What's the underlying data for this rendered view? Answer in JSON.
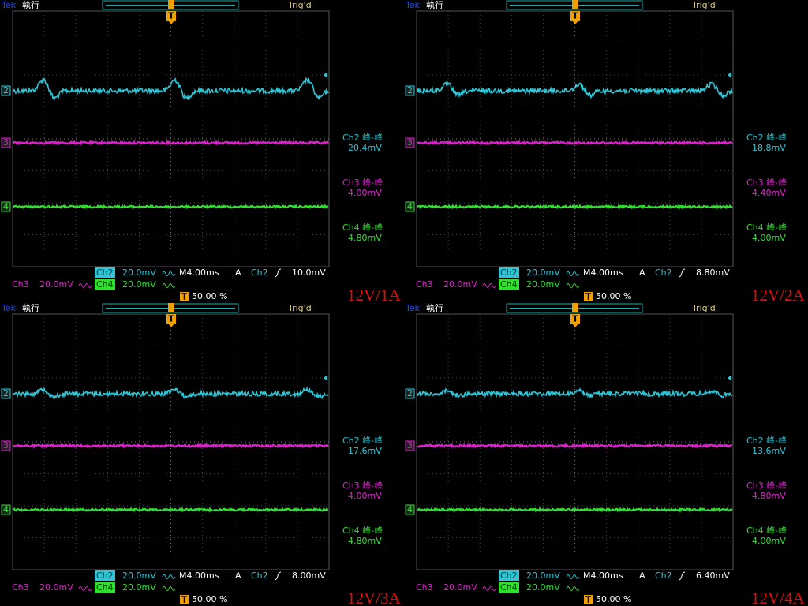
{
  "panels": [
    {
      "brand": "Tek",
      "status": "執行",
      "trigger_state": "Trig'd",
      "trigger_marker": "T",
      "channel_markers": [
        "2",
        "3",
        "4"
      ],
      "measurements": [
        {
          "label": "Ch2 峰-峰",
          "value": "20.4mV"
        },
        {
          "label": "Ch3 峰-峰",
          "value": "4.00mV"
        },
        {
          "label": "Ch4 峰-峰",
          "value": "4.80mV"
        }
      ],
      "ch2": "Ch2",
      "ch2_scale": "20.0mV",
      "timebase": "M4.00ms",
      "trigger_mode": "A",
      "trigger_source": "Ch2",
      "trigger_level": "10.0mV",
      "ch3": "Ch3",
      "ch3_scale": "20.0mV",
      "ch4": "Ch4",
      "ch4_scale": "20.0mV",
      "trigger_position": "50.00 %",
      "caption": "12V/1A"
    },
    {
      "brand": "Tek",
      "status": "執行",
      "trigger_state": "Trig'd",
      "trigger_marker": "T",
      "channel_markers": [
        "2",
        "3",
        "4"
      ],
      "measurements": [
        {
          "label": "Ch2 峰-峰",
          "value": "18.8mV"
        },
        {
          "label": "Ch3 峰-峰",
          "value": "4.40mV"
        },
        {
          "label": "Ch4 峰-峰",
          "value": "4.00mV"
        }
      ],
      "ch2": "Ch2",
      "ch2_scale": "20.0mV",
      "timebase": "M4.00ms",
      "trigger_mode": "A",
      "trigger_source": "Ch2",
      "trigger_level": "8.80mV",
      "ch3": "Ch3",
      "ch3_scale": "20.0mV",
      "ch4": "Ch4",
      "ch4_scale": "20.0mV",
      "trigger_position": "50.00 %",
      "caption": "12V/2A"
    },
    {
      "brand": "Tek",
      "status": "執行",
      "trigger_state": "Trig'd",
      "trigger_marker": "T",
      "channel_markers": [
        "2",
        "3",
        "4"
      ],
      "measurements": [
        {
          "label": "Ch2 峰-峰",
          "value": "17.6mV"
        },
        {
          "label": "Ch3 峰-峰",
          "value": "4.00mV"
        },
        {
          "label": "Ch4 峰-峰",
          "value": "4.80mV"
        }
      ],
      "ch2": "Ch2",
      "ch2_scale": "20.0mV",
      "timebase": "M4.00ms",
      "trigger_mode": "A",
      "trigger_source": "Ch2",
      "trigger_level": "8.00mV",
      "ch3": "Ch3",
      "ch3_scale": "20.0mV",
      "ch4": "Ch4",
      "ch4_scale": "20.0mV",
      "trigger_position": "50.00 %",
      "caption": "12V/3A"
    },
    {
      "brand": "Tek",
      "status": "執行",
      "trigger_state": "Trig'd",
      "trigger_marker": "T",
      "channel_markers": [
        "2",
        "3",
        "4"
      ],
      "measurements": [
        {
          "label": "Ch2 峰-峰",
          "value": "13.6mV"
        },
        {
          "label": "Ch3 峰-峰",
          "value": "4.80mV"
        },
        {
          "label": "Ch4 峰-峰",
          "value": "4.00mV"
        }
      ],
      "ch2": "Ch2",
      "ch2_scale": "20.0mV",
      "timebase": "M4.00ms",
      "trigger_mode": "A",
      "trigger_source": "Ch2",
      "trigger_level": "6.40mV",
      "ch3": "Ch3",
      "ch3_scale": "20.0mV",
      "ch4": "Ch4",
      "ch4_scale": "20.0mV",
      "trigger_position": "50.00 %",
      "caption": "12V/4A"
    }
  ]
}
